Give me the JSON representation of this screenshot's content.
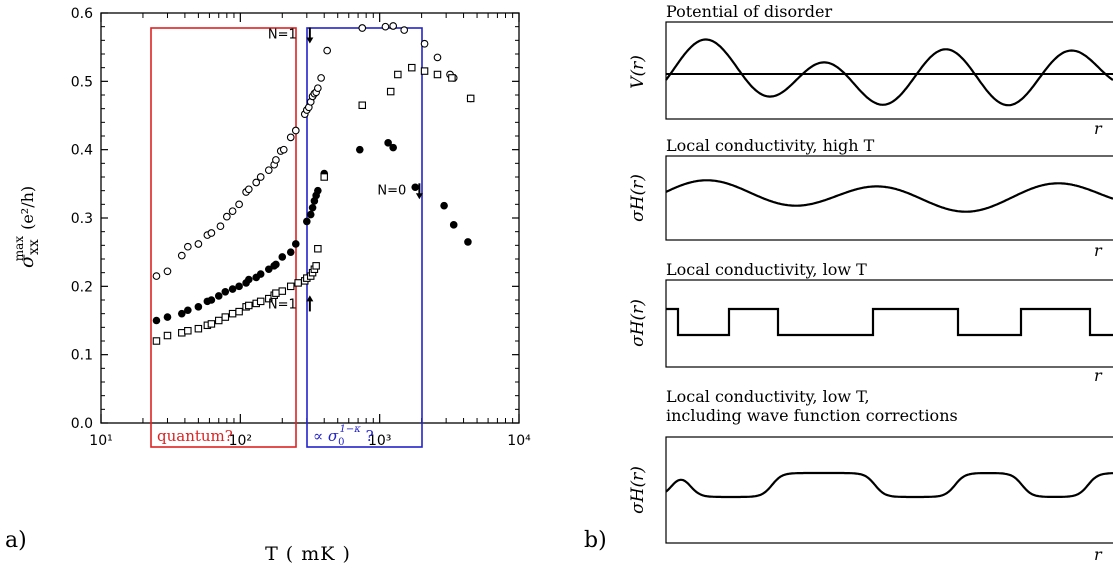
{
  "panel_a": {
    "label": "a)",
    "ylabel_main": "σ",
    "ylabel_sub": "xx",
    "ylabel_sup": "max",
    "ylabel_unit": "(e²/h)",
    "xlabel": "T ( mK )",
    "box_quantum_label": "quantum?",
    "box_sigma_prefix": "∝ σ",
    "box_sigma_sub": "0",
    "box_sigma_sup": "1−κ",
    "box_sigma_suffix": " ?",
    "annotations": [
      {
        "text": "N=1",
        "arrow": "down",
        "x": 360,
        "y": 0.57
      },
      {
        "text": "N=0",
        "arrow": "down",
        "x": 2200,
        "y": 0.342
      },
      {
        "text": "N=1",
        "arrow": "up",
        "x": 360,
        "y": 0.175
      }
    ],
    "colors": {
      "quantum_box": "#dd2222",
      "sigma_box": "#2222cc",
      "axes": "#000000"
    }
  },
  "panel_b": {
    "label": "b)",
    "panels": [
      {
        "title": "Potential of disorder",
        "ylabel": "V(r)",
        "xlabel": "r",
        "curve": "potential"
      },
      {
        "title": "Local conductivity, high T",
        "ylabel": "σH(r)",
        "xlabel": "r",
        "curve": "smooth"
      },
      {
        "title": "Local conductivity, low T",
        "ylabel": "σH(r)",
        "xlabel": "r",
        "curve": "step"
      },
      {
        "title_line1": "Local conductivity, low T,",
        "title_line2": "including wave function corrections",
        "ylabel": "σH(r)",
        "xlabel": "r",
        "curve": "rounded_step"
      }
    ]
  },
  "chart_data": {
    "type": "scatter",
    "x_scale": "log",
    "xlim": [
      10,
      10000
    ],
    "ylim": [
      0.0,
      0.6
    ],
    "xticks": [
      "10¹",
      "10²",
      "10³",
      "10⁴"
    ],
    "yticks": [
      "0.0",
      "0.1",
      "0.2",
      "0.3",
      "0.4",
      "0.5",
      "0.6"
    ],
    "xlabel": "T ( mK )",
    "ylabel": "σxx max (e²/h)",
    "series": [
      {
        "marker": "open-circle",
        "x": [
          25,
          30,
          38,
          42,
          50,
          58,
          62,
          72,
          80,
          88,
          98,
          110,
          115,
          130,
          140,
          160,
          175,
          180,
          195,
          205,
          230,
          250,
          290,
          300,
          310,
          320,
          330,
          340,
          350,
          360,
          380,
          420,
          750,
          1100,
          1250,
          1500,
          2100,
          2600,
          3200,
          3400,
          4500
        ],
        "y": [
          0.215,
          0.222,
          0.245,
          0.258,
          0.262,
          0.275,
          0.278,
          0.288,
          0.302,
          0.31,
          0.32,
          0.338,
          0.342,
          0.352,
          0.36,
          0.37,
          0.378,
          0.385,
          0.398,
          0.4,
          0.418,
          0.428,
          0.452,
          0.458,
          0.462,
          0.47,
          0.478,
          0.482,
          0.484,
          0.49,
          0.505,
          0.545,
          0.578,
          0.58,
          0.581,
          0.575,
          0.555,
          0.535,
          0.51,
          0.505,
          0.475
        ]
      },
      {
        "marker": "filled-circle",
        "x": [
          25,
          30,
          38,
          42,
          50,
          58,
          62,
          70,
          78,
          88,
          98,
          110,
          115,
          130,
          140,
          160,
          175,
          180,
          200,
          230,
          250,
          300,
          320,
          330,
          340,
          350,
          360,
          400,
          720,
          1150,
          1250,
          1800,
          2900,
          3400,
          4300
        ],
        "y": [
          0.15,
          0.155,
          0.16,
          0.165,
          0.17,
          0.178,
          0.18,
          0.186,
          0.192,
          0.196,
          0.2,
          0.205,
          0.21,
          0.213,
          0.218,
          0.225,
          0.23,
          0.232,
          0.243,
          0.25,
          0.262,
          0.295,
          0.305,
          0.315,
          0.325,
          0.333,
          0.34,
          0.365,
          0.4,
          0.41,
          0.403,
          0.345,
          0.318,
          0.29,
          0.265
        ]
      },
      {
        "marker": "open-square",
        "x": [
          25,
          30,
          38,
          42,
          50,
          58,
          62,
          70,
          78,
          88,
          98,
          110,
          115,
          130,
          140,
          160,
          175,
          180,
          200,
          230,
          260,
          290,
          300,
          320,
          330,
          340,
          350,
          360,
          400,
          750,
          1200,
          1350,
          1700,
          2100,
          2600,
          3300,
          4500
        ],
        "y": [
          0.12,
          0.128,
          0.132,
          0.135,
          0.138,
          0.143,
          0.145,
          0.15,
          0.155,
          0.16,
          0.163,
          0.17,
          0.172,
          0.175,
          0.178,
          0.182,
          0.187,
          0.19,
          0.193,
          0.2,
          0.205,
          0.208,
          0.212,
          0.215,
          0.22,
          0.225,
          0.23,
          0.255,
          0.36,
          0.465,
          0.485,
          0.51,
          0.52,
          0.515,
          0.51,
          0.505,
          0.475
        ]
      }
    ]
  }
}
